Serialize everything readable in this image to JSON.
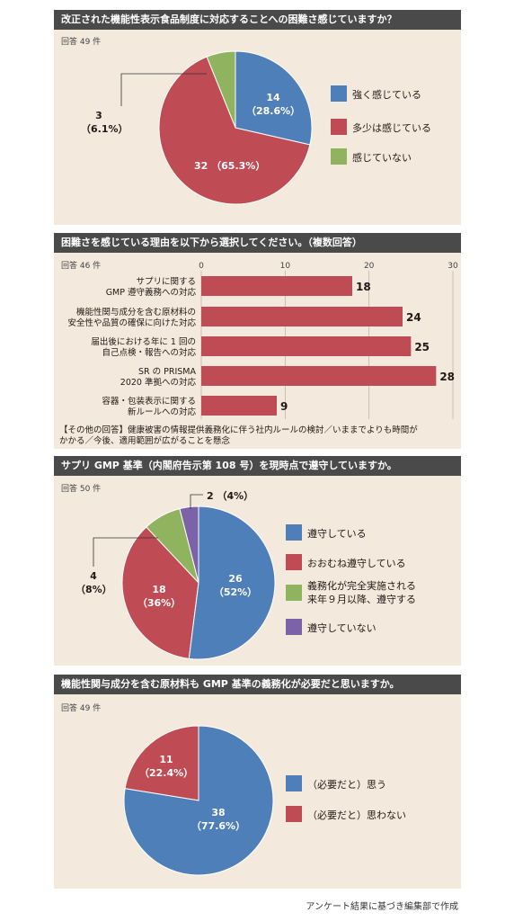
{
  "colors": {
    "blue": "#4f7fb8",
    "red": "#bf4b55",
    "green": "#8fb35f",
    "purple": "#7c62a6",
    "header": "#4a4a4a",
    "panel": "#f3eadd"
  },
  "q1": {
    "title": "改正された機能性表示食品制度に対応することへの困難さ感じていますか？",
    "responses": "回答 49 件",
    "chart_data": {
      "type": "pie",
      "series": [
        {
          "name": "強く感じている",
          "value": 14,
          "pct": "28.6%",
          "color": "#4f7fb8",
          "label_value": "14",
          "label_pct": "（28.6%）"
        },
        {
          "name": "多少は感じている",
          "value": 32,
          "pct": "65.3%",
          "color": "#bf4b55",
          "label_value": "32",
          "label_pct": "（65.3%）"
        },
        {
          "name": "感じていない",
          "value": 3,
          "pct": "6.1%",
          "color": "#8fb35f",
          "label_value": "3",
          "label_pct": "（6.1%）"
        }
      ]
    }
  },
  "q2": {
    "title": "困難さを感じている理由を以下から選択してください。（複数回答）",
    "responses": "回答 46 件",
    "chart_data": {
      "type": "bar",
      "orientation": "horizontal",
      "xlim": [
        0,
        30
      ],
      "ticks": [
        "0",
        "10",
        "20",
        "30"
      ],
      "categories": [
        [
          "サプリに関する",
          "GMP 遵守義務への対応"
        ],
        [
          "機能性関与成分を含む原材料の",
          "安全性や品質の確保に向けた対応"
        ],
        [
          "届出後における年に 1 回の",
          "自己点検・報告への対応"
        ],
        [
          "SR の PRISMA",
          "2020 準拠への対応"
        ],
        [
          "容器・包装表示に関する",
          "新ルールへの対応"
        ]
      ],
      "values": [
        18,
        24,
        25,
        28,
        9
      ],
      "value_labels": [
        "18",
        "24",
        "25",
        "28",
        "9"
      ],
      "color": "#bf4b55"
    },
    "other_answers": [
      "【その他の回答】健康被害の情報提供義務化に伴う社内ルールの検討／いままでよりも時間が",
      "かかる／今後、適用範囲が広がることを懸念"
    ]
  },
  "q3": {
    "title": "サプリ GMP 基準（内閣府告示第 108 号）を現時点で遵守していますか。",
    "responses": "回答 50 件",
    "chart_data": {
      "type": "pie",
      "series": [
        {
          "name": "遵守している",
          "value": 26,
          "pct": "52%",
          "color": "#4f7fb8",
          "label_value": "26",
          "label_pct": "（52%）"
        },
        {
          "name": "おおむね遵守している",
          "value": 18,
          "pct": "36%",
          "color": "#bf4b55",
          "label_value": "18",
          "label_pct": "（36%）"
        },
        {
          "name": "義務化が完全実施される来年９月以降、遵守する",
          "value": 4,
          "pct": "8%",
          "color": "#8fb35f",
          "label_value": "4",
          "label_pct": "（8%）"
        },
        {
          "name": "遵守していない",
          "value": 2,
          "pct": "4%",
          "color": "#7c62a6",
          "label_value": "2",
          "label_pct": "（4%）"
        }
      ],
      "legend_lines": [
        "遵守している",
        "おおむね遵守している",
        [
          "義務化が完全実施される",
          "来年９月以降、遵守する"
        ],
        "遵守していない"
      ]
    }
  },
  "q4": {
    "title": "機能性関与成分を含む原材料も GMP 基準の義務化が必要だと思いますか。",
    "responses": "回答 49 件",
    "chart_data": {
      "type": "pie",
      "series": [
        {
          "name": "（必要だと）思う",
          "value": 38,
          "pct": "77.6%",
          "color": "#4f7fb8",
          "label_value": "38",
          "label_pct": "（77.6%）"
        },
        {
          "name": "（必要だと）思わない",
          "value": 11,
          "pct": "22.4%",
          "color": "#bf4b55",
          "label_value": "11",
          "label_pct": "（22.4%）"
        }
      ]
    }
  },
  "footer": "アンケート結果に基づき編集部で作成"
}
